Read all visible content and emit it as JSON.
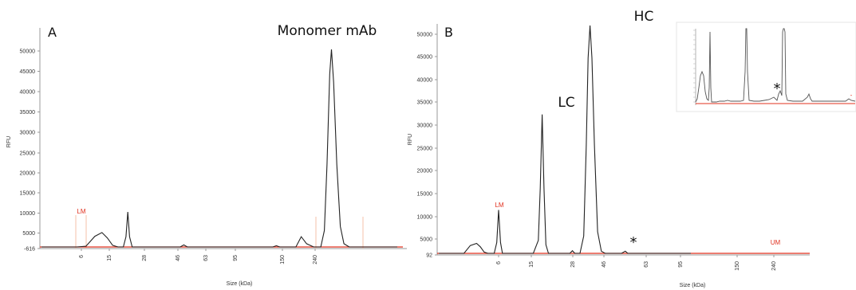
{
  "chart_data": [
    {
      "type": "line",
      "panel": "A",
      "title": "",
      "xlabel": "Size (kDa)",
      "ylabel": "RFU",
      "y_ticks": [
        -616,
        5000,
        10000,
        15000,
        20000,
        25000,
        30000,
        35000,
        40000,
        45000,
        50000
      ],
      "y_tick_labels": [
        "-616",
        "5000",
        "10000",
        "15000",
        "20000",
        "25000",
        "30000",
        "35000",
        "40000",
        "45000",
        "50000"
      ],
      "ylim": [
        -616,
        52000
      ],
      "x_ticks": [
        "6",
        "15",
        "28",
        "46",
        "63",
        "95",
        "150",
        "240"
      ],
      "series": [
        {
          "color": "#222222",
          "points": [
            [
              0.0,
              0
            ],
            [
              1.0,
              0
            ],
            [
              2.0,
              0
            ],
            [
              2.5,
              200
            ],
            [
              3.0,
              2600
            ],
            [
              3.4,
              3500
            ],
            [
              3.7,
              2200
            ],
            [
              4.0,
              400
            ],
            [
              4.3,
              0
            ],
            [
              4.6,
              0
            ],
            [
              4.75,
              2500
            ],
            [
              4.85,
              8500
            ],
            [
              4.95,
              2500
            ],
            [
              5.1,
              0
            ],
            [
              6.0,
              0
            ],
            [
              7.0,
              0
            ],
            [
              7.8,
              0
            ],
            [
              8.0,
              500
            ],
            [
              8.2,
              0
            ],
            [
              10.0,
              0
            ],
            [
              12.0,
              0
            ],
            [
              13.0,
              0
            ],
            [
              13.2,
              300
            ],
            [
              13.4,
              0
            ],
            [
              14.3,
              0
            ],
            [
              14.6,
              2500
            ],
            [
              14.9,
              800
            ],
            [
              15.3,
              0
            ],
            [
              15.7,
              0
            ],
            [
              15.9,
              4000
            ],
            [
              16.05,
              20000
            ],
            [
              16.2,
              42000
            ],
            [
              16.3,
              48000
            ],
            [
              16.42,
              40000
            ],
            [
              16.6,
              20000
            ],
            [
              16.8,
              5000
            ],
            [
              17.0,
              800
            ],
            [
              17.3,
              0
            ],
            [
              18.0,
              0
            ],
            [
              20.0,
              0
            ]
          ]
        }
      ],
      "marker_label": "LM",
      "annotations": [
        "Monomer mAb"
      ]
    },
    {
      "type": "line",
      "panel": "B",
      "title": "",
      "xlabel": "Size (kDa)",
      "ylabel": "RFU",
      "y_ticks": [
        92,
        5000,
        10000,
        15000,
        20000,
        25000,
        30000,
        35000,
        40000,
        45000,
        50000
      ],
      "y_tick_labels": [
        "92",
        "5000",
        "10000",
        "15000",
        "20000",
        "25000",
        "30000",
        "35000",
        "40000",
        "45000",
        "50000"
      ],
      "ylim": [
        92,
        52500
      ],
      "x_ticks": [
        "6",
        "15",
        "28",
        "46",
        "63",
        "95",
        "150",
        "240"
      ],
      "series": [
        {
          "color": "#222222",
          "points": [
            [
              0.0,
              0
            ],
            [
              1.0,
              0
            ],
            [
              2.0,
              0
            ],
            [
              2.5,
              1800
            ],
            [
              3.0,
              2300
            ],
            [
              3.3,
              1500
            ],
            [
              3.6,
              300
            ],
            [
              3.9,
              0
            ],
            [
              4.4,
              0
            ],
            [
              4.6,
              2500
            ],
            [
              4.75,
              10000
            ],
            [
              4.9,
              2500
            ],
            [
              5.05,
              0
            ],
            [
              6.0,
              0
            ],
            [
              7.5,
              0
            ],
            [
              7.9,
              3000
            ],
            [
              8.05,
              15000
            ],
            [
              8.2,
              32000
            ],
            [
              8.35,
              15000
            ],
            [
              8.5,
              2000
            ],
            [
              8.7,
              0
            ],
            [
              9.5,
              0
            ],
            [
              10.0,
              0
            ],
            [
              10.4,
              0
            ],
            [
              10.6,
              600
            ],
            [
              10.8,
              0
            ],
            [
              11.2,
              0
            ],
            [
              11.5,
              4000
            ],
            [
              11.7,
              25000
            ],
            [
              11.85,
              45000
            ],
            [
              12.0,
              52500
            ],
            [
              12.15,
              45000
            ],
            [
              12.35,
              25000
            ],
            [
              12.6,
              5000
            ],
            [
              12.9,
              500
            ],
            [
              13.2,
              0
            ],
            [
              14.5,
              0
            ],
            [
              14.8,
              500
            ],
            [
              15.0,
              0
            ],
            [
              16.0,
              0
            ],
            [
              18.0,
              0
            ],
            [
              20.0,
              0
            ]
          ]
        }
      ],
      "marker_labels": [
        "LM",
        "UM"
      ],
      "annotations": [
        "LC",
        "HC",
        "*",
        "*"
      ]
    }
  ]
}
